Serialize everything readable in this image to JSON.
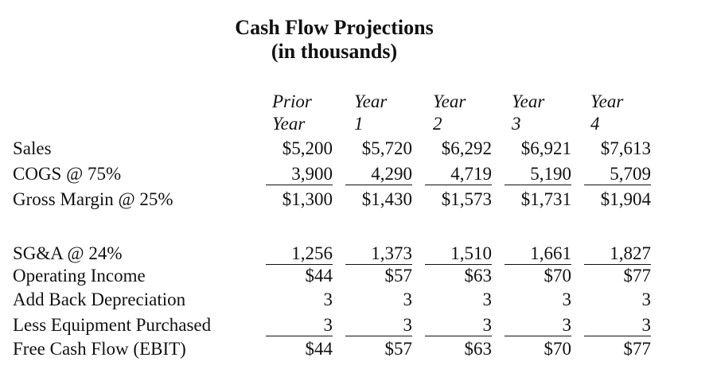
{
  "title": "Cash Flow Projections",
  "subtitle": "(in thousands)",
  "columns": [
    {
      "line1": "Prior",
      "line2": "Year"
    },
    {
      "line1": "Year",
      "line2": "1"
    },
    {
      "line1": "Year",
      "line2": "2"
    },
    {
      "line1": "Year",
      "line2": "3"
    },
    {
      "line1": "Year",
      "line2": "4"
    }
  ],
  "rows": [
    {
      "label": "Sales",
      "values": [
        "$5,200",
        "$5,720",
        "$6,292",
        "$6,921",
        "$7,613"
      ],
      "underline": false
    },
    {
      "label": "COGS @ 75%",
      "values": [
        "3,900",
        "4,290",
        "4,719",
        "5,190",
        "5,709"
      ],
      "underline": true
    },
    {
      "label": "Gross Margin @ 25%",
      "values": [
        "$1,300",
        "$1,430",
        "$1,573",
        "$1,731",
        "$1,904"
      ],
      "underline": false
    },
    {
      "label": "SG&A @ 24%",
      "values": [
        "1,256",
        "1,373",
        "1,510",
        "1,661",
        "1,827"
      ],
      "underline": true
    },
    {
      "label": "Operating Income",
      "values": [
        "$44",
        "$57",
        "$63",
        "$70",
        "$77"
      ],
      "underline": false
    },
    {
      "label": "Add Back Depreciation",
      "values": [
        "3",
        "3",
        "3",
        "3",
        "3"
      ],
      "underline": false
    },
    {
      "label": "Less Equipment Purchased",
      "values": [
        "3",
        "3",
        "3",
        "3",
        "3"
      ],
      "underline": true
    },
    {
      "label": "Free Cash Flow (EBIT)",
      "values": [
        "$44",
        "$57",
        "$63",
        "$70",
        "$77"
      ],
      "underline": false
    }
  ]
}
